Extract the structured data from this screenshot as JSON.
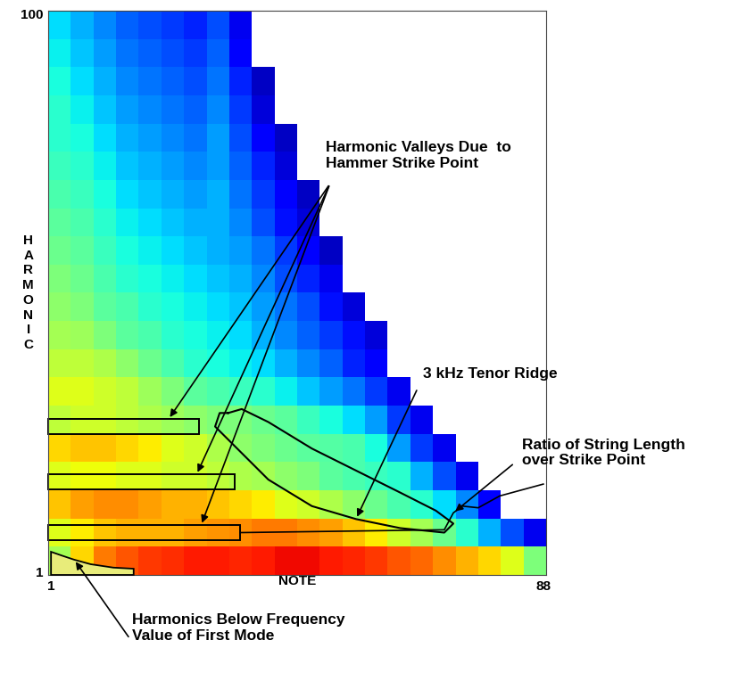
{
  "chart_data": {
    "type": "heatmap",
    "x_label": "NOTE",
    "y_label": "HARMONIC",
    "xlim": [
      0.5,
      88.5
    ],
    "ylim": [
      0.5,
      100.5
    ],
    "xticks": [
      1,
      88
    ],
    "yticks": [
      1,
      100
    ],
    "grid": false,
    "note_bins": [
      0.5,
      4.5,
      8.5,
      12.5,
      16.5,
      20.5,
      24.5,
      28.5,
      32.5,
      36.5,
      40.5,
      44.5,
      48.5,
      52.5,
      56.5,
      60.5,
      64.5,
      68.5,
      72.5,
      76.5,
      80.5,
      84.5,
      88.5
    ],
    "harmonic_bins": [
      0.5,
      5.5,
      10.5,
      15.5,
      20.5,
      25.5,
      30.5,
      35.5,
      40.5,
      45.5,
      50.5,
      55.5,
      60.5,
      65.5,
      70.5,
      75.5,
      80.5,
      85.5,
      90.5,
      95.5,
      100.5
    ],
    "color_range": [
      0,
      100
    ],
    "cells": [
      [
        55,
        68,
        78,
        82,
        85,
        86,
        88,
        88,
        87,
        88,
        90,
        90,
        88,
        87,
        85,
        82,
        80,
        76,
        72,
        68,
        62,
        50
      ],
      [
        62,
        66,
        70,
        72,
        72,
        72,
        74,
        75,
        76,
        78,
        78,
        76,
        74,
        70,
        66,
        60,
        55,
        48,
        40,
        30,
        20,
        10
      ],
      [
        70,
        74,
        76,
        76,
        74,
        72,
        72,
        70,
        68,
        66,
        62,
        60,
        56,
        52,
        48,
        44,
        40,
        34,
        26,
        12,
        null,
        null
      ],
      [
        62,
        64,
        64,
        62,
        62,
        60,
        60,
        58,
        56,
        55,
        52,
        50,
        46,
        44,
        42,
        40,
        30,
        20,
        10,
        null,
        null,
        null
      ],
      [
        68,
        70,
        70,
        68,
        66,
        62,
        60,
        56,
        52,
        50,
        48,
        46,
        45,
        44,
        38,
        28,
        18,
        10,
        null,
        null,
        null,
        null
      ],
      [
        58,
        60,
        60,
        58,
        56,
        54,
        52,
        50,
        50,
        48,
        46,
        42,
        38,
        34,
        28,
        18,
        10,
        null,
        null,
        null,
        null,
        null
      ],
      [
        62,
        62,
        60,
        58,
        54,
        50,
        46,
        44,
        42,
        40,
        36,
        32,
        28,
        24,
        18,
        10,
        null,
        null,
        null,
        null,
        null,
        null
      ],
      [
        58,
        58,
        56,
        52,
        48,
        44,
        40,
        38,
        36,
        34,
        30,
        26,
        22,
        16,
        12,
        null,
        null,
        null,
        null,
        null,
        null,
        null
      ],
      [
        55,
        54,
        50,
        46,
        44,
        40,
        38,
        36,
        34,
        30,
        26,
        22,
        18,
        14,
        8,
        null,
        null,
        null,
        null,
        null,
        null,
        null
      ],
      [
        52,
        50,
        46,
        44,
        40,
        38,
        36,
        34,
        32,
        28,
        24,
        20,
        14,
        8,
        null,
        null,
        null,
        null,
        null,
        null,
        null,
        null
      ],
      [
        50,
        48,
        44,
        40,
        38,
        36,
        34,
        32,
        30,
        26,
        20,
        16,
        10,
        null,
        null,
        null,
        null,
        null,
        null,
        null,
        null,
        null
      ],
      [
        48,
        46,
        42,
        38,
        36,
        34,
        32,
        30,
        28,
        24,
        18,
        12,
        6,
        null,
        null,
        null,
        null,
        null,
        null,
        null,
        null,
        null
      ],
      [
        46,
        44,
        40,
        36,
        34,
        32,
        30,
        30,
        26,
        20,
        14,
        8,
        null,
        null,
        null,
        null,
        null,
        null,
        null,
        null,
        null,
        null
      ],
      [
        44,
        42,
        38,
        34,
        32,
        30,
        28,
        30,
        24,
        18,
        12,
        6,
        null,
        null,
        null,
        null,
        null,
        null,
        null,
        null,
        null,
        null
      ],
      [
        42,
        40,
        36,
        32,
        30,
        28,
        26,
        28,
        22,
        16,
        8,
        null,
        null,
        null,
        null,
        null,
        null,
        null,
        null,
        null,
        null,
        null
      ],
      [
        40,
        38,
        34,
        30,
        28,
        26,
        24,
        28,
        20,
        12,
        6,
        null,
        null,
        null,
        null,
        null,
        null,
        null,
        null,
        null,
        null,
        null
      ],
      [
        40,
        36,
        32,
        28,
        26,
        24,
        22,
        26,
        18,
        8,
        null,
        null,
        null,
        null,
        null,
        null,
        null,
        null,
        null,
        null,
        null,
        null
      ],
      [
        38,
        34,
        30,
        26,
        24,
        22,
        20,
        24,
        16,
        6,
        null,
        null,
        null,
        null,
        null,
        null,
        null,
        null,
        null,
        null,
        null,
        null
      ],
      [
        36,
        32,
        28,
        24,
        22,
        20,
        18,
        22,
        12,
        null,
        null,
        null,
        null,
        null,
        null,
        null,
        null,
        null,
        null,
        null,
        null,
        null
      ],
      [
        34,
        30,
        26,
        22,
        20,
        18,
        16,
        20,
        10,
        null,
        null,
        null,
        null,
        null,
        null,
        null,
        null,
        null,
        null,
        null,
        null,
        null
      ]
    ],
    "annotations": [
      {
        "text": "Harmonic Valleys Due  to\nHammer Strike Point",
        "harmonics": [
          26.8,
          17.0,
          8.0
        ],
        "note_ends": [
          27.2,
          33.4,
          34.4
        ]
      },
      {
        "text": "3 kHz Tenor Ridge",
        "outline": {
          "notes": [
            32.3,
            34.7,
            39.4,
            47.1,
            54.9,
            62.7,
            69.0,
            72.1,
            70.5,
            62.7,
            54.9,
            47.1,
            39.4,
            33.1,
            30.0,
            30.8,
            32.3
          ],
          "harmonics": [
            29.2,
            29.9,
            27.6,
            22.9,
            19.0,
            15.1,
            11.9,
            9.6,
            8.0,
            8.8,
            10.4,
            12.7,
            17.4,
            23.7,
            26.8,
            29.2,
            29.2
          ]
        }
      },
      {
        "text": "Ratio of String Length\nover Strike Point",
        "line": {
          "notes": [
            34.4,
            70.5,
            72.1,
            73.7,
            76.5,
            80.3,
            88.0
          ],
          "harmonics": [
            8.0,
            8.5,
            11.5,
            12.7,
            12.4,
            14.5,
            16.6
          ]
        }
      },
      {
        "text": "Harmonics Below Frequency\nValue of First Mode",
        "region": {
          "notes": [
            1,
            1,
            3,
            5.1,
            8,
            12,
            15.6,
            15.6
          ],
          "harmonics": [
            0.5,
            4.6,
            3.9,
            3.2,
            2.4,
            1.8,
            1.6,
            0.5
          ]
        }
      }
    ]
  }
}
